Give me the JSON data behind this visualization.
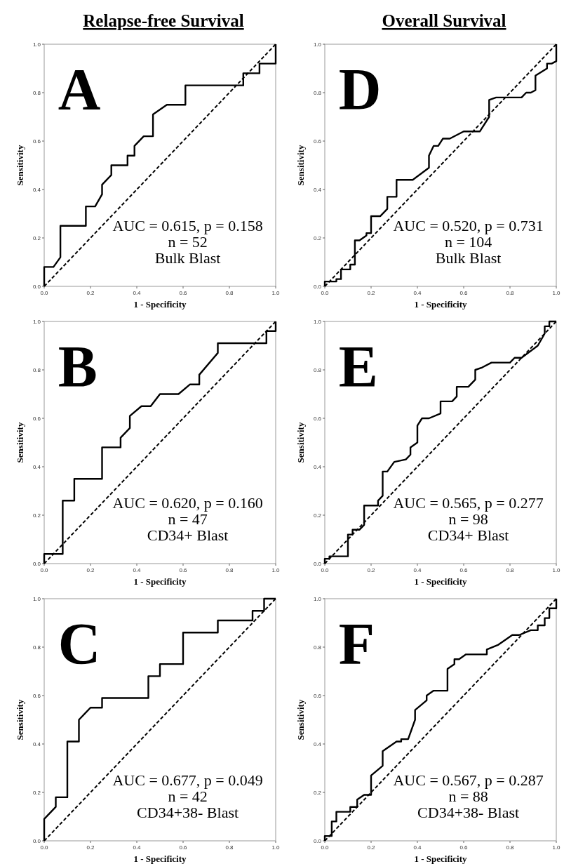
{
  "chart_data": [
    {
      "type": "line",
      "title": "Relapse-free Survival",
      "xlabel": "1 - Specificity",
      "ylabel": "Sensitivity",
      "annotations": [
        "A",
        "AUC = 0.615, p = 0.158",
        "n = 52",
        "Bulk Blast"
      ],
      "xlim": [
        0,
        1
      ],
      "ylim": [
        0,
        1
      ],
      "xticks": [
        {
          "value": 0,
          "label": "0.0"
        },
        {
          "value": 0.2,
          "label": "0.2"
        },
        {
          "value": 0.4,
          "label": "0.4"
        },
        {
          "value": 0.6,
          "label": "0.6"
        },
        {
          "value": 0.8,
          "label": "0.8"
        },
        {
          "value": 1,
          "label": "1.0"
        }
      ],
      "yticks": [
        {
          "value": 0,
          "label": "0.0"
        },
        {
          "value": 0.2,
          "label": "0.2"
        },
        {
          "value": 0.4,
          "label": "0.4"
        },
        {
          "value": 0.6,
          "label": "0.6"
        },
        {
          "value": 0.8,
          "label": "0.8"
        },
        {
          "value": 1,
          "label": "1.0"
        }
      ],
      "grid": false,
      "marker": "none",
      "series": [
        {
          "color": "#000000",
          "line_style": "solid",
          "x": [
            0,
            0,
            0.04,
            0.07,
            0.07,
            0.18,
            0.18,
            0.22,
            0.25,
            0.25,
            0.29,
            0.29,
            0.36,
            0.36,
            0.39,
            0.39,
            0.43,
            0.47,
            0.47,
            0.53,
            0.61,
            0.61,
            0.86,
            0.86,
            0.93,
            0.93,
            1,
            1
          ],
          "values": [
            0,
            0.08,
            0.08,
            0.12,
            0.25,
            0.25,
            0.33,
            0.33,
            0.38,
            0.42,
            0.46,
            0.5,
            0.5,
            0.54,
            0.54,
            0.58,
            0.62,
            0.62,
            0.71,
            0.75,
            0.75,
            0.83,
            0.83,
            0.88,
            0.88,
            0.92,
            0.92,
            1
          ]
        },
        {
          "color": "#000000",
          "line_style": "dashed",
          "x": [
            0,
            1
          ],
          "values": [
            0,
            1
          ]
        }
      ]
    },
    {
      "type": "line",
      "title": "Overall Survival",
      "xlabel": "1 - Specificity",
      "ylabel": "Sensitivity",
      "annotations": [
        "D",
        "AUC = 0.520, p = 0.731",
        "n = 104",
        "Bulk Blast"
      ],
      "xlim": [
        0,
        1
      ],
      "ylim": [
        0,
        1
      ],
      "xticks": [
        {
          "value": 0,
          "label": "0.0"
        },
        {
          "value": 0.2,
          "label": "0.2"
        },
        {
          "value": 0.4,
          "label": "0.4"
        },
        {
          "value": 0.6,
          "label": "0.6"
        },
        {
          "value": 0.8,
          "label": "0.8"
        },
        {
          "value": 1,
          "label": "1.0"
        }
      ],
      "yticks": [
        {
          "value": 0,
          "label": "0.0"
        },
        {
          "value": 0.2,
          "label": "0.2"
        },
        {
          "value": 0.4,
          "label": "0.4"
        },
        {
          "value": 0.6,
          "label": "0.6"
        },
        {
          "value": 0.8,
          "label": "0.8"
        },
        {
          "value": 1,
          "label": "1.0"
        }
      ],
      "grid": false,
      "marker": "none",
      "series": [
        {
          "color": "#000000",
          "line_style": "solid",
          "x": [
            0,
            0,
            0.05,
            0.05,
            0.07,
            0.07,
            0.11,
            0.11,
            0.13,
            0.13,
            0.15,
            0.18,
            0.18,
            0.2,
            0.2,
            0.24,
            0.27,
            0.27,
            0.31,
            0.31,
            0.38,
            0.45,
            0.45,
            0.47,
            0.49,
            0.51,
            0.54,
            0.6,
            0.67,
            0.71,
            0.71,
            0.74,
            0.85,
            0.87,
            0.89,
            0.91,
            0.91,
            0.96,
            0.96,
            0.98,
            1,
            1
          ],
          "values": [
            0,
            0.02,
            0.02,
            0.03,
            0.03,
            0.07,
            0.07,
            0.09,
            0.09,
            0.19,
            0.19,
            0.21,
            0.22,
            0.22,
            0.29,
            0.29,
            0.32,
            0.37,
            0.37,
            0.44,
            0.44,
            0.49,
            0.54,
            0.58,
            0.58,
            0.61,
            0.61,
            0.64,
            0.64,
            0.7,
            0.77,
            0.78,
            0.78,
            0.8,
            0.8,
            0.81,
            0.87,
            0.9,
            0.92,
            0.92,
            0.93,
            1
          ]
        },
        {
          "color": "#000000",
          "line_style": "dashed",
          "x": [
            0,
            1
          ],
          "values": [
            0,
            1
          ]
        }
      ]
    },
    {
      "type": "line",
      "xlabel": "1 - Specificity",
      "ylabel": "Sensitivity",
      "annotations": [
        "B",
        "AUC = 0.620, p = 0.160",
        "n = 47",
        "CD34+ Blast"
      ],
      "xlim": [
        0,
        1
      ],
      "ylim": [
        0,
        1
      ],
      "xticks": [
        {
          "value": 0,
          "label": "0.0"
        },
        {
          "value": 0.2,
          "label": "0.2"
        },
        {
          "value": 0.4,
          "label": "0.4"
        },
        {
          "value": 0.6,
          "label": "0.6"
        },
        {
          "value": 0.8,
          "label": "0.8"
        },
        {
          "value": 1,
          "label": "1.0"
        }
      ],
      "yticks": [
        {
          "value": 0,
          "label": "0.0"
        },
        {
          "value": 0.2,
          "label": "0.2"
        },
        {
          "value": 0.4,
          "label": "0.4"
        },
        {
          "value": 0.6,
          "label": "0.6"
        },
        {
          "value": 0.8,
          "label": "0.8"
        },
        {
          "value": 1,
          "label": "1.0"
        }
      ],
      "grid": false,
      "marker": "none",
      "series": [
        {
          "color": "#000000",
          "line_style": "solid",
          "x": [
            0,
            0,
            0.08,
            0.08,
            0.13,
            0.13,
            0.25,
            0.25,
            0.33,
            0.33,
            0.37,
            0.37,
            0.42,
            0.46,
            0.5,
            0.58,
            0.63,
            0.67,
            0.67,
            0.75,
            0.75,
            0.96,
            0.96,
            1,
            1
          ],
          "values": [
            0,
            0.04,
            0.04,
            0.26,
            0.26,
            0.35,
            0.35,
            0.48,
            0.48,
            0.52,
            0.56,
            0.61,
            0.65,
            0.65,
            0.7,
            0.7,
            0.74,
            0.74,
            0.78,
            0.87,
            0.91,
            0.91,
            0.96,
            0.96,
            1
          ]
        },
        {
          "color": "#000000",
          "line_style": "dashed",
          "x": [
            0,
            1
          ],
          "values": [
            0,
            1
          ]
        }
      ]
    },
    {
      "type": "line",
      "xlabel": "1 - Specificity",
      "ylabel": "Sensitivity",
      "annotations": [
        "E",
        "AUC = 0.565, p = 0.277",
        "n = 98",
        "CD34+ Blast"
      ],
      "xlim": [
        0,
        1
      ],
      "ylim": [
        0,
        1
      ],
      "xticks": [
        {
          "value": 0,
          "label": "0.0"
        },
        {
          "value": 0.2,
          "label": "0.2"
        },
        {
          "value": 0.4,
          "label": "0.4"
        },
        {
          "value": 0.6,
          "label": "0.6"
        },
        {
          "value": 0.8,
          "label": "0.8"
        },
        {
          "value": 1,
          "label": "1.0"
        }
      ],
      "yticks": [
        {
          "value": 0,
          "label": "0.0"
        },
        {
          "value": 0.2,
          "label": "0.2"
        },
        {
          "value": 0.4,
          "label": "0.4"
        },
        {
          "value": 0.6,
          "label": "0.6"
        },
        {
          "value": 0.8,
          "label": "0.8"
        },
        {
          "value": 1,
          "label": "1.0"
        }
      ],
      "grid": false,
      "marker": "none",
      "series": [
        {
          "color": "#000000",
          "line_style": "solid",
          "x": [
            0,
            0,
            0.02,
            0.02,
            0.1,
            0.1,
            0.12,
            0.12,
            0.15,
            0.17,
            0.17,
            0.23,
            0.23,
            0.25,
            0.25,
            0.27,
            0.3,
            0.35,
            0.37,
            0.37,
            0.4,
            0.4,
            0.42,
            0.45,
            0.5,
            0.5,
            0.55,
            0.57,
            0.57,
            0.62,
            0.65,
            0.65,
            0.68,
            0.72,
            0.8,
            0.82,
            0.85,
            0.92,
            0.95,
            0.95,
            0.97,
            0.97,
            1
          ],
          "values": [
            0,
            0.02,
            0.02,
            0.03,
            0.03,
            0.12,
            0.12,
            0.14,
            0.14,
            0.16,
            0.24,
            0.24,
            0.26,
            0.28,
            0.38,
            0.38,
            0.42,
            0.43,
            0.45,
            0.48,
            0.5,
            0.57,
            0.6,
            0.6,
            0.62,
            0.67,
            0.67,
            0.69,
            0.73,
            0.73,
            0.76,
            0.8,
            0.81,
            0.83,
            0.83,
            0.85,
            0.85,
            0.9,
            0.95,
            0.98,
            0.98,
            1,
            1
          ]
        },
        {
          "color": "#000000",
          "line_style": "dashed",
          "x": [
            0,
            1
          ],
          "values": [
            0,
            1
          ]
        }
      ]
    },
    {
      "type": "line",
      "xlabel": "1 - Specificity",
      "ylabel": "Sensitivity",
      "annotations": [
        "C",
        "AUC = 0.677, p = 0.049",
        "n = 42",
        "CD34+38- Blast"
      ],
      "xlim": [
        0,
        1
      ],
      "ylim": [
        0,
        1
      ],
      "xticks": [
        {
          "value": 0,
          "label": "0.0"
        },
        {
          "value": 0.2,
          "label": "0.2"
        },
        {
          "value": 0.4,
          "label": "0.4"
        },
        {
          "value": 0.6,
          "label": "0.6"
        },
        {
          "value": 0.8,
          "label": "0.8"
        },
        {
          "value": 1,
          "label": "1.0"
        }
      ],
      "yticks": [
        {
          "value": 0,
          "label": "0.0"
        },
        {
          "value": 0.2,
          "label": "0.2"
        },
        {
          "value": 0.4,
          "label": "0.4"
        },
        {
          "value": 0.6,
          "label": "0.6"
        },
        {
          "value": 0.8,
          "label": "0.8"
        },
        {
          "value": 1,
          "label": "1.0"
        }
      ],
      "grid": false,
      "marker": "none",
      "series": [
        {
          "color": "#000000",
          "line_style": "solid",
          "x": [
            0,
            0,
            0.05,
            0.05,
            0.1,
            0.1,
            0.15,
            0.15,
            0.2,
            0.25,
            0.25,
            0.45,
            0.45,
            0.5,
            0.5,
            0.6,
            0.6,
            0.75,
            0.75,
            0.9,
            0.9,
            0.95,
            0.95,
            1
          ],
          "values": [
            0,
            0.09,
            0.14,
            0.18,
            0.18,
            0.41,
            0.41,
            0.5,
            0.55,
            0.55,
            0.59,
            0.59,
            0.68,
            0.68,
            0.73,
            0.73,
            0.86,
            0.86,
            0.91,
            0.91,
            0.95,
            0.95,
            1,
            1
          ]
        },
        {
          "color": "#000000",
          "line_style": "dashed",
          "x": [
            0,
            1
          ],
          "values": [
            0,
            1
          ]
        }
      ]
    },
    {
      "type": "line",
      "xlabel": "1 - Specificity",
      "ylabel": "Sensitivity",
      "annotations": [
        "F",
        "AUC = 0.567, p = 0.287",
        "n = 88",
        "CD34+38- Blast"
      ],
      "xlim": [
        0,
        1
      ],
      "ylim": [
        0,
        1
      ],
      "xticks": [
        {
          "value": 0,
          "label": "0.0"
        },
        {
          "value": 0.2,
          "label": "0.2"
        },
        {
          "value": 0.4,
          "label": "0.4"
        },
        {
          "value": 0.6,
          "label": "0.6"
        },
        {
          "value": 0.8,
          "label": "0.8"
        },
        {
          "value": 1,
          "label": "1.0"
        }
      ],
      "yticks": [
        {
          "value": 0,
          "label": "0.0"
        },
        {
          "value": 0.2,
          "label": "0.2"
        },
        {
          "value": 0.4,
          "label": "0.4"
        },
        {
          "value": 0.6,
          "label": "0.6"
        },
        {
          "value": 0.8,
          "label": "0.8"
        },
        {
          "value": 1,
          "label": "1.0"
        }
      ],
      "grid": false,
      "marker": "none",
      "series": [
        {
          "color": "#000000",
          "line_style": "solid",
          "x": [
            0,
            0,
            0.03,
            0.03,
            0.05,
            0.05,
            0.11,
            0.11,
            0.14,
            0.14,
            0.17,
            0.2,
            0.2,
            0.25,
            0.25,
            0.31,
            0.33,
            0.33,
            0.36,
            0.39,
            0.39,
            0.44,
            0.44,
            0.47,
            0.53,
            0.53,
            0.56,
            0.56,
            0.58,
            0.61,
            0.7,
            0.7,
            0.75,
            0.81,
            0.84,
            0.89,
            0.92,
            0.92,
            0.95,
            0.95,
            0.97,
            0.97,
            1,
            1
          ],
          "values": [
            0,
            0.02,
            0.02,
            0.08,
            0.08,
            0.12,
            0.12,
            0.14,
            0.14,
            0.17,
            0.19,
            0.19,
            0.27,
            0.31,
            0.37,
            0.41,
            0.41,
            0.42,
            0.42,
            0.5,
            0.54,
            0.58,
            0.6,
            0.62,
            0.62,
            0.71,
            0.73,
            0.75,
            0.75,
            0.77,
            0.77,
            0.79,
            0.81,
            0.85,
            0.85,
            0.87,
            0.87,
            0.89,
            0.89,
            0.92,
            0.92,
            0.96,
            0.96,
            1
          ]
        },
        {
          "color": "#000000",
          "line_style": "dashed",
          "x": [
            0,
            1
          ],
          "values": [
            0,
            1
          ]
        }
      ]
    }
  ]
}
